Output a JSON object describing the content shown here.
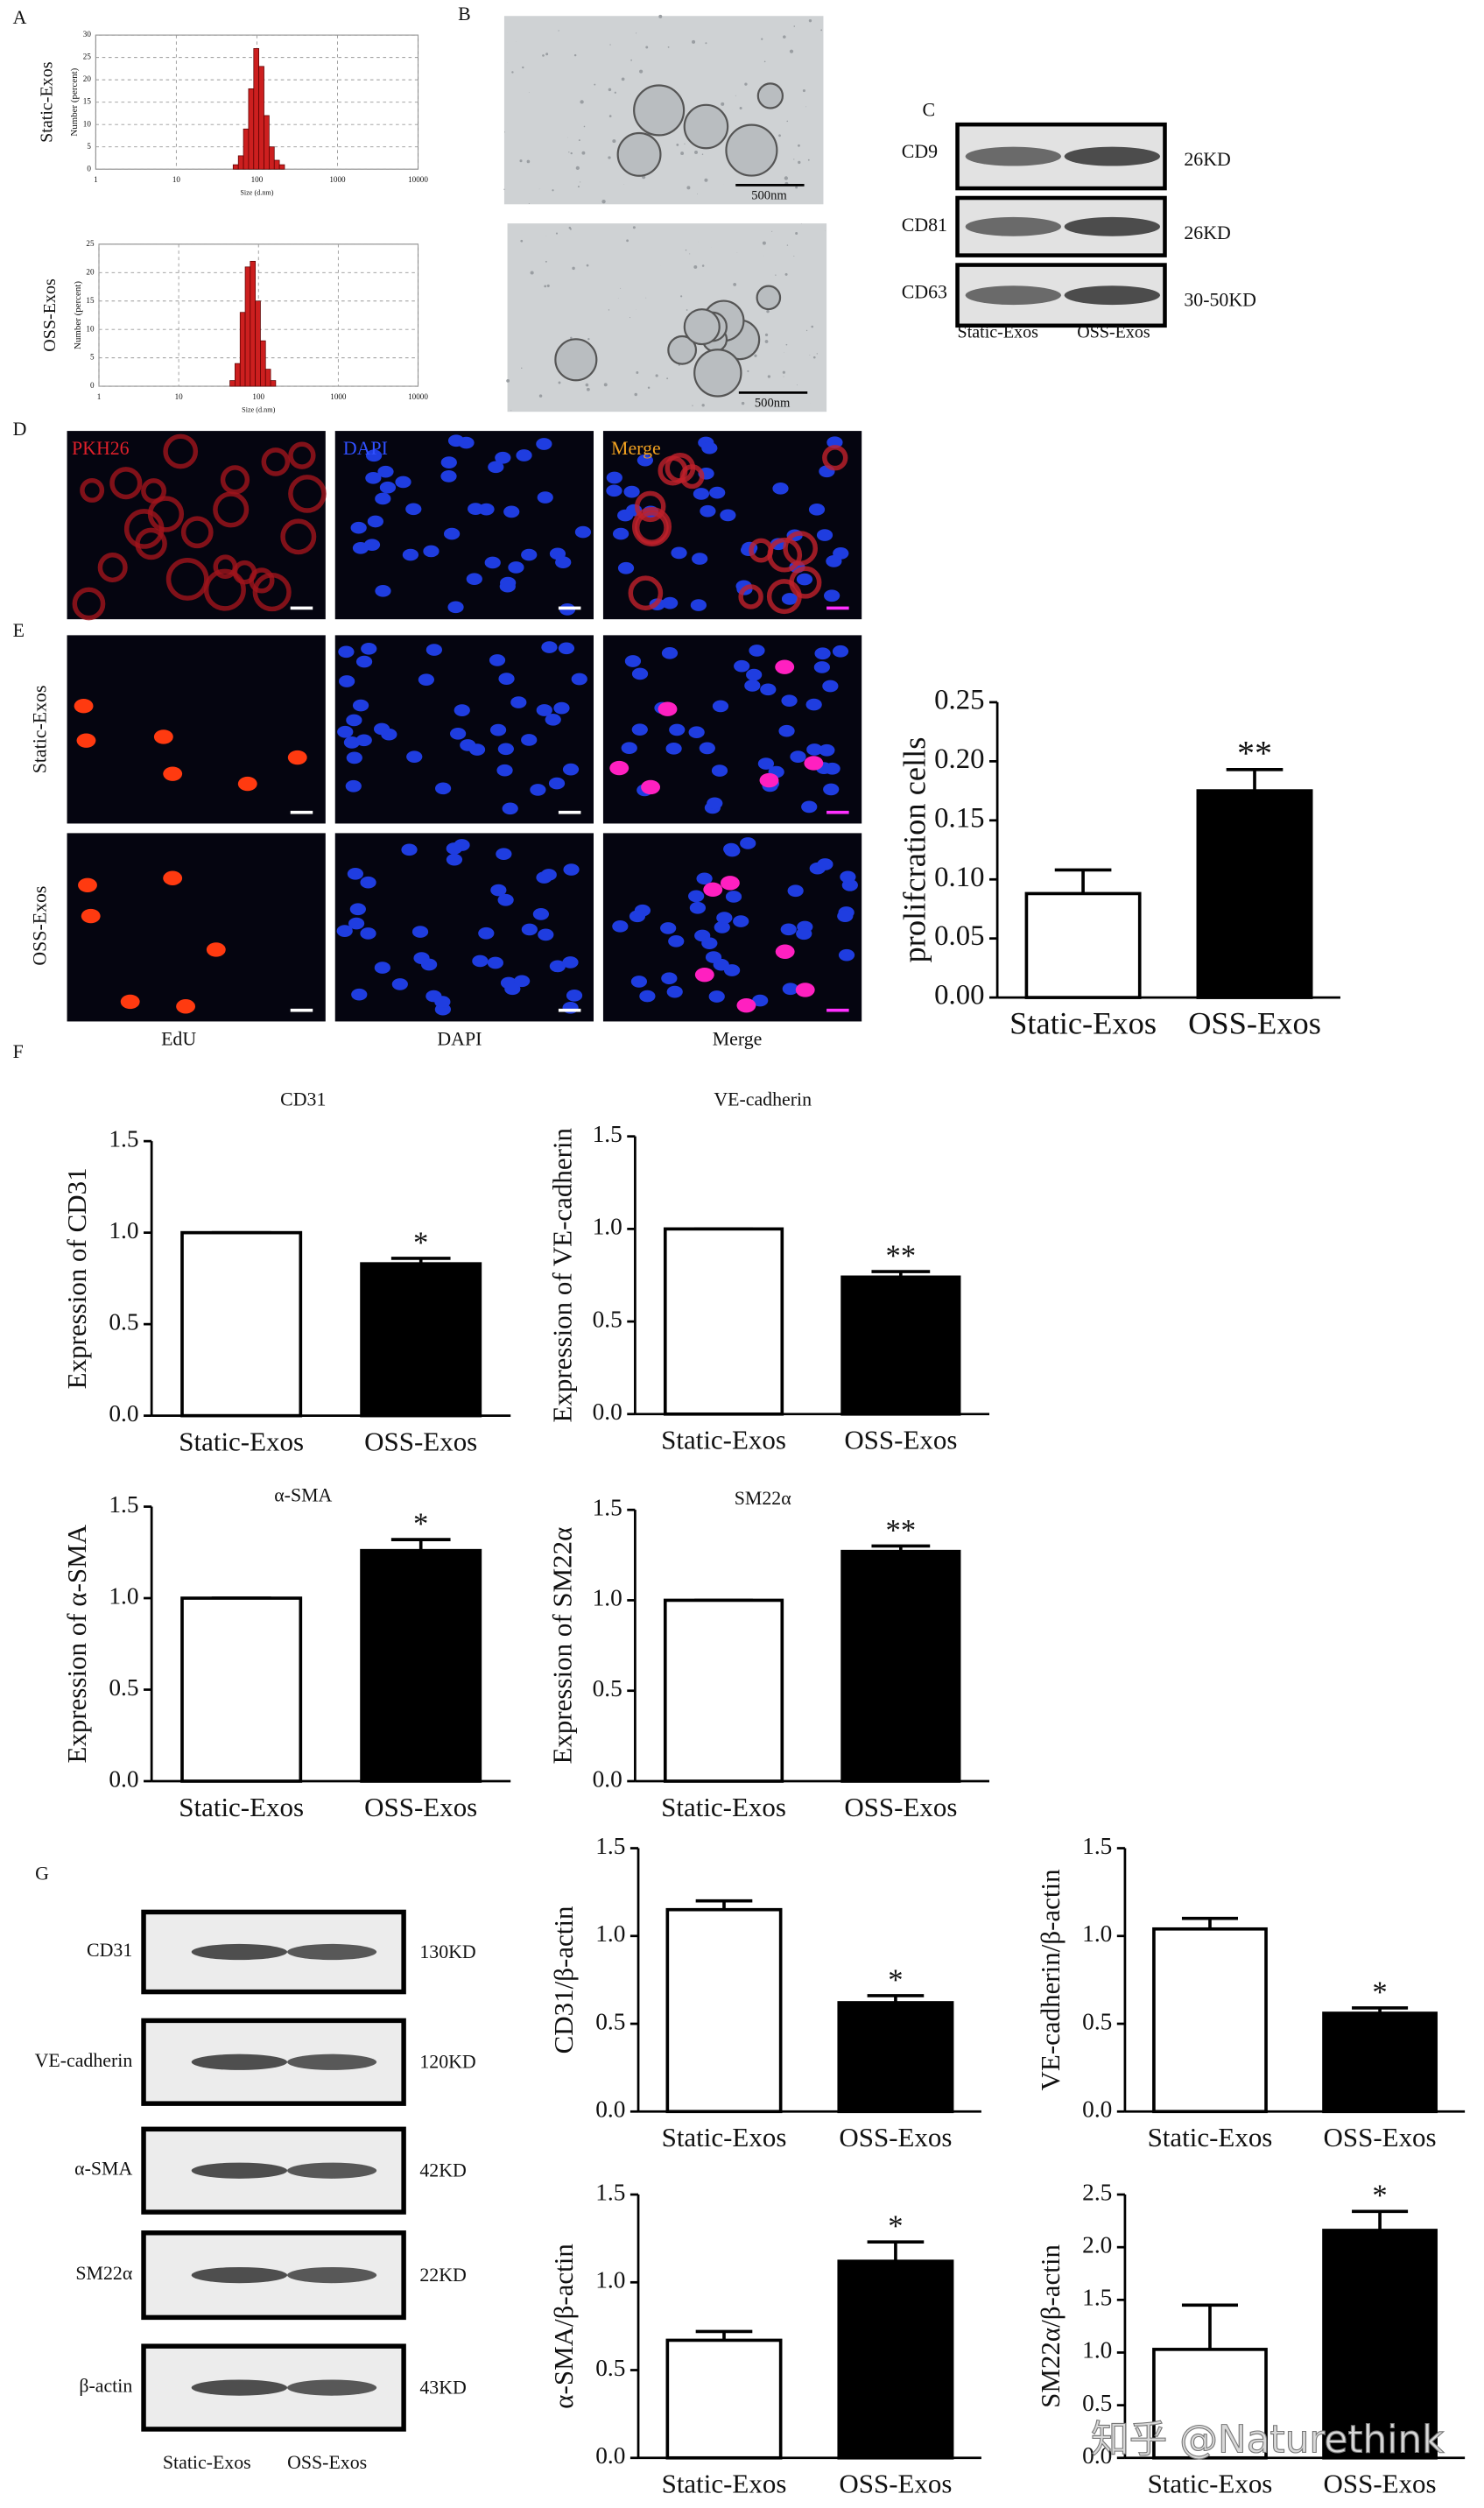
{
  "panel_labels": [
    "A",
    "B",
    "C",
    "D",
    "E",
    "F",
    "G"
  ],
  "tem_scale_labels": [
    "500nm",
    "500nm"
  ],
  "blot_c": {
    "bands": [
      "CD9",
      "CD81",
      "CD63"
    ],
    "sizes": [
      "26KD",
      "26KD",
      "30-50KD"
    ],
    "lanes": [
      "Static-Exos",
      "OSS-Exos"
    ]
  },
  "staining_d": [
    "PKH26",
    "DAPI",
    "Merge"
  ],
  "edu_e": {
    "rows": [
      "Static-Exos",
      "OSS-Exos"
    ],
    "columns": [
      "EdU",
      "DAPI",
      "Merge"
    ]
  },
  "blot_g": {
    "bands": [
      "CD31",
      "VE-cadherin",
      "α-SMA",
      "SM22α",
      "β-actin"
    ],
    "sizes": [
      "130KD",
      "120KD",
      "42KD",
      "22KD",
      "43KD"
    ],
    "lanes": [
      "Static-Exos",
      "OSS-Exos"
    ]
  },
  "watermark": "知乎 @Naturethink",
  "chart_data": [
    {
      "type": "histogram",
      "side_label": "Static-Exos",
      "ylabel": "Number (percent)",
      "xlabel": "Size (d.nm)",
      "log_x": true,
      "color": "#cc1f1f",
      "bins": [
        50.7,
        58.8,
        68.1,
        78.8,
        91.3,
        105.7,
        122.4,
        141.8,
        164.2,
        190.1,
        220.2
      ],
      "values": [
        1,
        3,
        9,
        18,
        27,
        23,
        12,
        5,
        2,
        1
      ],
      "xlim": [
        1,
        10000
      ],
      "xticks": [
        1,
        10,
        100,
        1000,
        10000
      ],
      "ylim": [
        0,
        30
      ],
      "yticks": [
        0,
        5,
        10,
        15,
        20,
        25,
        30
      ],
      "grid": true
    },
    {
      "type": "histogram",
      "side_label": "OSS-Exos",
      "ylabel": "Number (percent)",
      "xlabel": "Size (d.nm)",
      "log_x": true,
      "color": "#cc1f1f",
      "bins": [
        43.8,
        50.7,
        58.8,
        68.1,
        78.8,
        91.3,
        105.7,
        122.4,
        141.8,
        164.2
      ],
      "values": [
        1,
        4,
        13,
        21,
        22,
        15,
        8,
        3,
        1
      ],
      "xlim": [
        1,
        10000
      ],
      "xticks": [
        1,
        10,
        100,
        1000,
        10000
      ],
      "ylim": [
        0,
        25
      ],
      "yticks": [
        0,
        5,
        10,
        15,
        20,
        25
      ],
      "grid": true
    },
    {
      "type": "bar",
      "ylabel": "prolifcration cells",
      "categories": [
        "Static-Exos",
        "OSS-Exos"
      ],
      "values": [
        0.088,
        0.175
      ],
      "errors": [
        0.02,
        0.018
      ],
      "significance": [
        null,
        "**"
      ],
      "colors": [
        "#ffffff",
        "#000000"
      ],
      "ylim": [
        0,
        0.25
      ],
      "yticks": [
        {
          "value": 0,
          "label": "0.00"
        },
        {
          "value": 0.05,
          "label": "0.05"
        },
        {
          "value": 0.1,
          "label": "0.10"
        },
        {
          "value": 0.15,
          "label": "0.15"
        },
        {
          "value": 0.2,
          "label": "0.20"
        },
        {
          "value": 0.25,
          "label": "0.25"
        }
      ]
    },
    {
      "type": "bar",
      "title": "CD31",
      "ylabel": "Expression of CD31",
      "categories": [
        "Static-Exos",
        "OSS-Exos"
      ],
      "values": [
        1.0,
        0.83
      ],
      "errors": [
        0,
        0.03
      ],
      "significance": [
        null,
        "*"
      ],
      "colors": [
        "#ffffff",
        "#000000"
      ],
      "ylim": [
        0,
        1.5
      ],
      "yticks": [
        {
          "value": 0,
          "label": "0.0"
        },
        {
          "value": 0.5,
          "label": "0.5"
        },
        {
          "value": 1,
          "label": "1.0"
        },
        {
          "value": 1.5,
          "label": "1.5"
        }
      ]
    },
    {
      "type": "bar",
      "title": "VE-cadherin",
      "ylabel": "Expression of VE-cadherin",
      "categories": [
        "Static-Exos",
        "OSS-Exos"
      ],
      "values": [
        1.0,
        0.74
      ],
      "errors": [
        0,
        0.03
      ],
      "significance": [
        null,
        "**"
      ],
      "colors": [
        "#ffffff",
        "#000000"
      ],
      "ylim": [
        0,
        1.5
      ],
      "yticks": [
        {
          "value": 0,
          "label": "0.0"
        },
        {
          "value": 0.5,
          "label": "0.5"
        },
        {
          "value": 1,
          "label": "1.0"
        },
        {
          "value": 1.5,
          "label": "1.5"
        }
      ]
    },
    {
      "type": "bar",
      "title": "α-SMA",
      "ylabel": "Expression of α-SMA",
      "categories": [
        "Static-Exos",
        "OSS-Exos"
      ],
      "values": [
        1.0,
        1.26
      ],
      "errors": [
        0,
        0.06
      ],
      "significance": [
        null,
        "*"
      ],
      "colors": [
        "#ffffff",
        "#000000"
      ],
      "ylim": [
        0,
        1.5
      ],
      "yticks": [
        {
          "value": 0,
          "label": "0.0"
        },
        {
          "value": 0.5,
          "label": "0.5"
        },
        {
          "value": 1,
          "label": "1.0"
        },
        {
          "value": 1.5,
          "label": "1.5"
        }
      ]
    },
    {
      "type": "bar",
      "title": "SM22α",
      "ylabel": "Expression of SM22α",
      "categories": [
        "Static-Exos",
        "OSS-Exos"
      ],
      "values": [
        1.0,
        1.27
      ],
      "errors": [
        0,
        0.03
      ],
      "significance": [
        null,
        "**"
      ],
      "colors": [
        "#ffffff",
        "#000000"
      ],
      "ylim": [
        0,
        1.5
      ],
      "yticks": [
        {
          "value": 0,
          "label": "0.0"
        },
        {
          "value": 0.5,
          "label": "0.5"
        },
        {
          "value": 1,
          "label": "1.0"
        },
        {
          "value": 1.5,
          "label": "1.5"
        }
      ]
    },
    {
      "type": "bar",
      "ylabel": "CD31/β-actin",
      "categories": [
        "Static-Exos",
        "OSS-Exos"
      ],
      "values": [
        1.15,
        0.62
      ],
      "errors": [
        0.05,
        0.04
      ],
      "significance": [
        null,
        "*"
      ],
      "colors": [
        "#ffffff",
        "#000000"
      ],
      "ylim": [
        0,
        1.5
      ],
      "yticks": [
        {
          "value": 0,
          "label": "0.0"
        },
        {
          "value": 0.5,
          "label": "0.5"
        },
        {
          "value": 1,
          "label": "1.0"
        },
        {
          "value": 1.5,
          "label": "1.5"
        }
      ]
    },
    {
      "type": "bar",
      "ylabel": "VE-cadherin/β-actin",
      "categories": [
        "Static-Exos",
        "OSS-Exos"
      ],
      "values": [
        1.04,
        0.56
      ],
      "errors": [
        0.06,
        0.03
      ],
      "significance": [
        null,
        "*"
      ],
      "colors": [
        "#ffffff",
        "#000000"
      ],
      "ylim": [
        0,
        1.5
      ],
      "yticks": [
        {
          "value": 0,
          "label": "0.0"
        },
        {
          "value": 0.5,
          "label": "0.5"
        },
        {
          "value": 1,
          "label": "1.0"
        },
        {
          "value": 1.5,
          "label": "1.5"
        }
      ]
    },
    {
      "type": "bar",
      "ylabel": "α-SMA/β-actin",
      "categories": [
        "Static-Exos",
        "OSS-Exos"
      ],
      "values": [
        0.67,
        1.12
      ],
      "errors": [
        0.05,
        0.11
      ],
      "significance": [
        null,
        "*"
      ],
      "colors": [
        "#ffffff",
        "#000000"
      ],
      "ylim": [
        0,
        1.5
      ],
      "yticks": [
        {
          "value": 0,
          "label": "0.0"
        },
        {
          "value": 0.5,
          "label": "0.5"
        },
        {
          "value": 1,
          "label": "1.0"
        },
        {
          "value": 1.5,
          "label": "1.5"
        }
      ]
    },
    {
      "type": "bar",
      "ylabel": "SM22α/β-actin",
      "categories": [
        "Static-Exos",
        "OSS-Exos"
      ],
      "values": [
        1.03,
        2.16
      ],
      "errors": [
        0.42,
        0.18
      ],
      "significance": [
        null,
        "*"
      ],
      "colors": [
        "#ffffff",
        "#000000"
      ],
      "ylim": [
        0,
        2.5
      ],
      "yticks": [
        {
          "value": 0,
          "label": "0.0"
        },
        {
          "value": 0.5,
          "label": "0.5"
        },
        {
          "value": 1,
          "label": "1.0"
        },
        {
          "value": 1.5,
          "label": "1.5"
        },
        {
          "value": 2,
          "label": "2.0"
        },
        {
          "value": 2.5,
          "label": "2.5"
        }
      ]
    }
  ]
}
